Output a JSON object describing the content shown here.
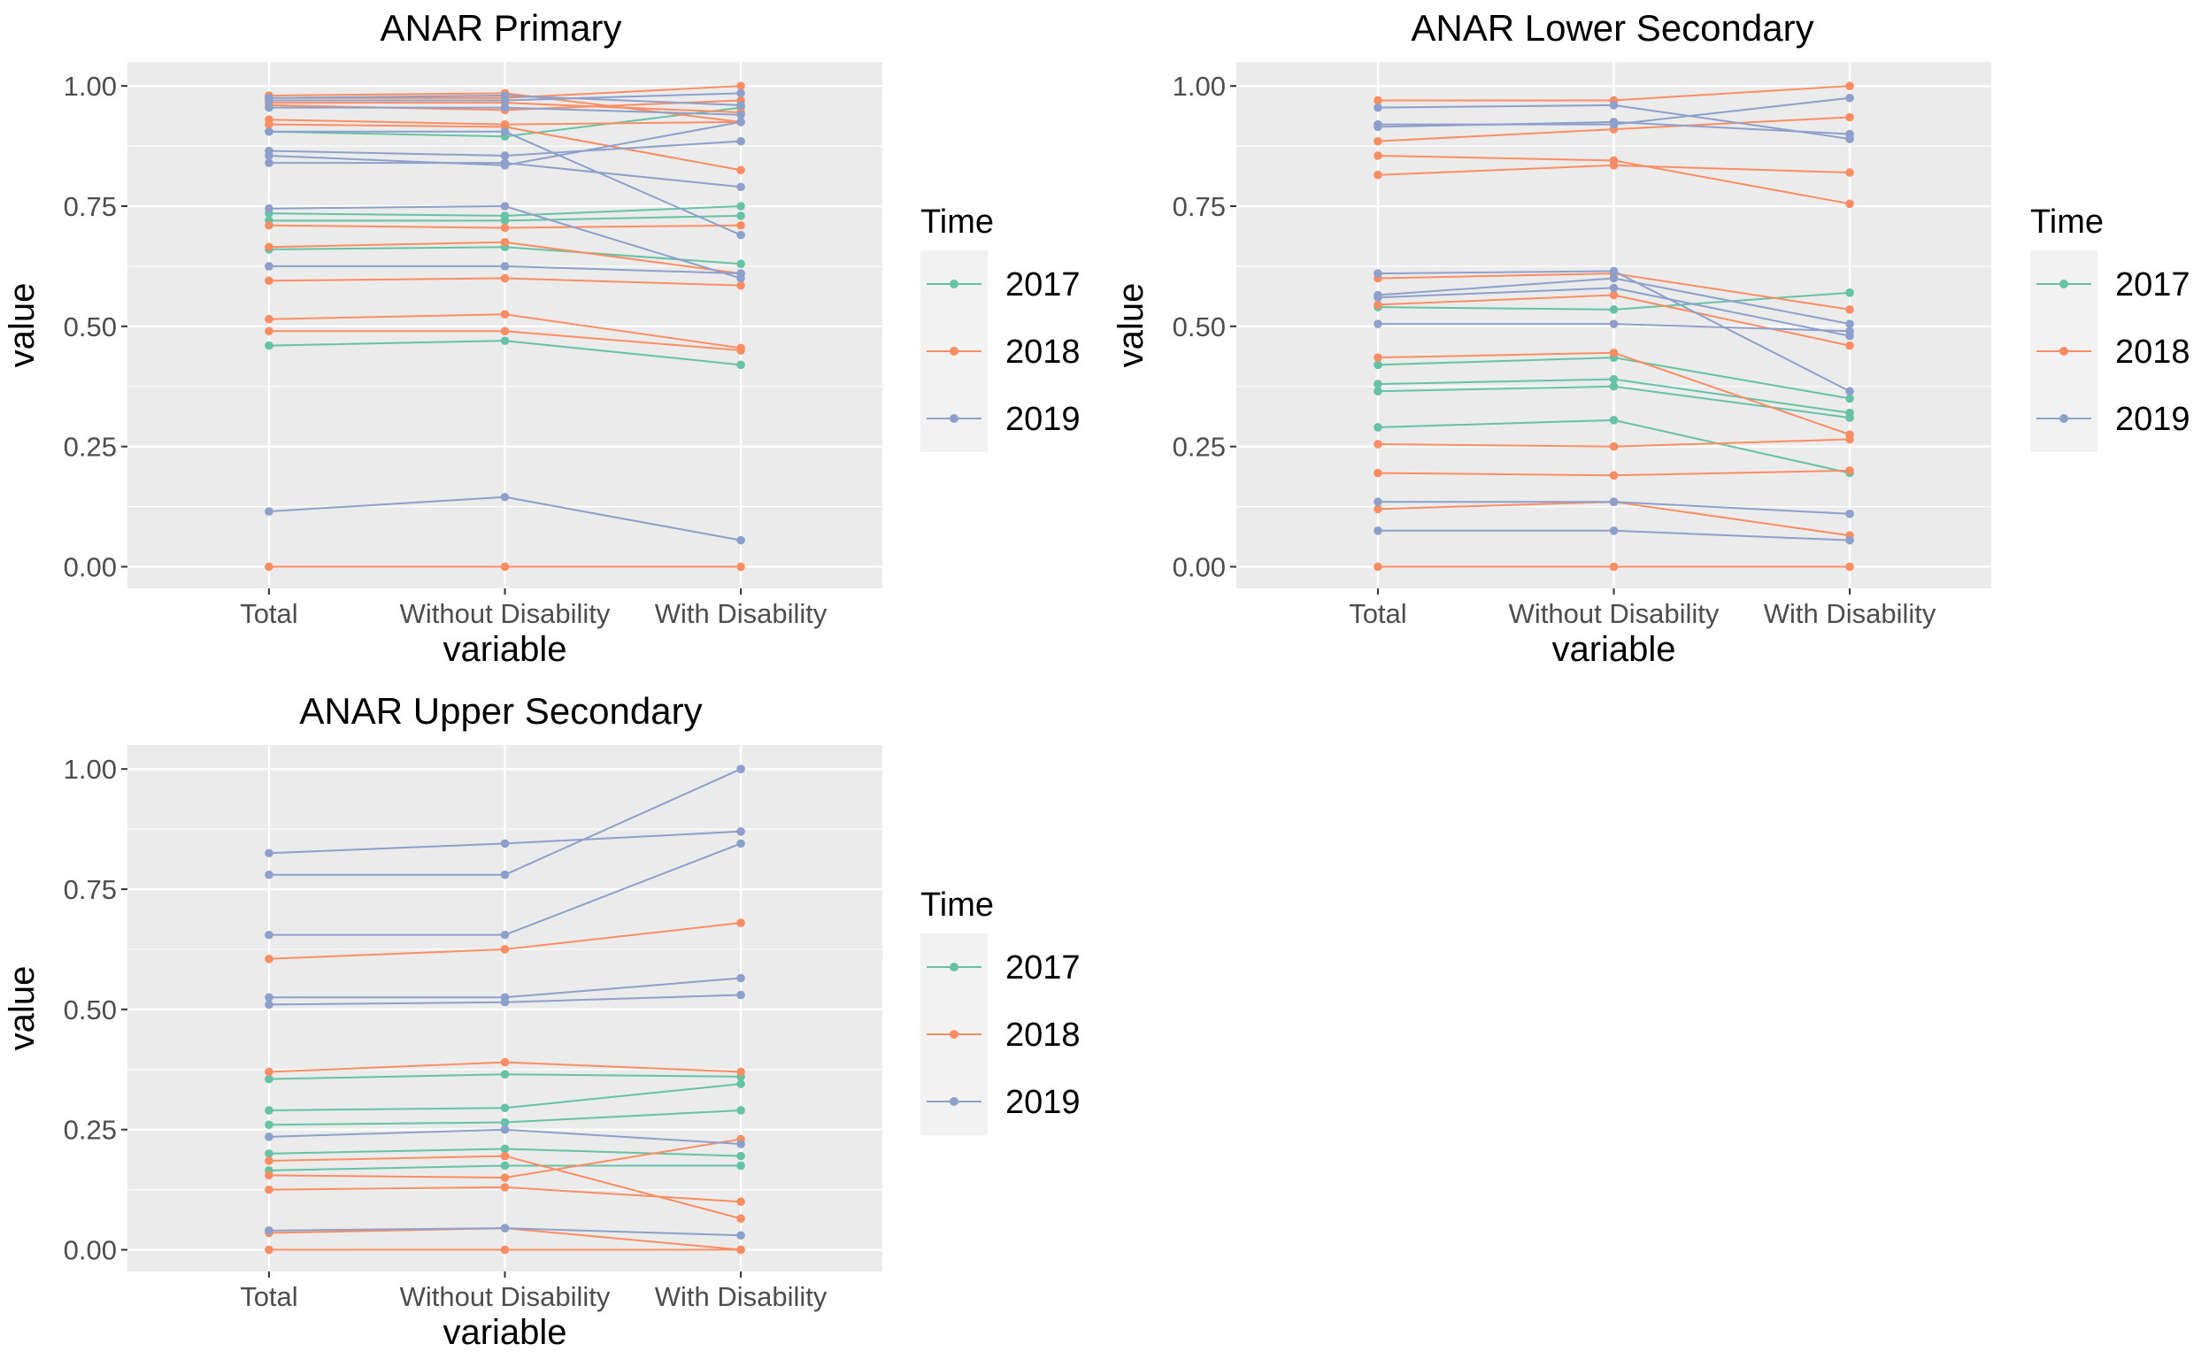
{
  "colors": {
    "panel_bg": "#ebebeb",
    "grid_major": "#ffffff",
    "legend_key_bg": "#f2f2f2",
    "2017": "#66c2a5",
    "2018": "#fc8d62",
    "2019": "#8da0cb"
  },
  "chart_data": [
    {
      "type": "line",
      "title": "ANAR Primary",
      "xlabel": "variable",
      "ylabel": "value",
      "categories": [
        "Total",
        "Without Disability",
        "With Disability"
      ],
      "yticks": [
        "0.00",
        "0.25",
        "0.50",
        "0.75",
        "1.00"
      ],
      "ylim": [
        -0.045,
        1.05
      ],
      "grid": true,
      "legend": {
        "title": "Time",
        "placement": "right",
        "entries": [
          "2017",
          "2018",
          "2019"
        ]
      },
      "series": [
        {
          "time": "2017",
          "values": [
            0.905,
            0.895,
            0.955
          ]
        },
        {
          "time": "2017",
          "values": [
            0.735,
            0.73,
            0.75
          ]
        },
        {
          "time": "2017",
          "values": [
            0.72,
            0.72,
            0.73
          ]
        },
        {
          "time": "2017",
          "values": [
            0.66,
            0.665,
            0.63
          ]
        },
        {
          "time": "2017",
          "values": [
            0.46,
            0.47,
            0.42
          ]
        },
        {
          "time": "2018",
          "values": [
            0.98,
            0.985,
            0.925
          ]
        },
        {
          "time": "2018",
          "values": [
            0.975,
            0.975,
            1.0
          ]
        },
        {
          "time": "2018",
          "values": [
            0.965,
            0.965,
            0.945
          ]
        },
        {
          "time": "2018",
          "values": [
            0.96,
            0.95,
            0.97
          ]
        },
        {
          "time": "2018",
          "values": [
            0.93,
            0.92,
            0.925
          ]
        },
        {
          "time": "2018",
          "values": [
            0.92,
            0.915,
            0.825
          ]
        },
        {
          "time": "2018",
          "values": [
            0.71,
            0.705,
            0.71
          ]
        },
        {
          "time": "2018",
          "values": [
            0.665,
            0.675,
            0.61
          ]
        },
        {
          "time": "2018",
          "values": [
            0.595,
            0.6,
            0.585
          ]
        },
        {
          "time": "2018",
          "values": [
            0.515,
            0.525,
            0.455
          ]
        },
        {
          "time": "2018",
          "values": [
            0.49,
            0.49,
            0.45
          ]
        },
        {
          "time": "2018",
          "values": [
            0.0,
            0.0,
            0.0
          ]
        },
        {
          "time": "2019",
          "values": [
            0.975,
            0.98,
            0.96
          ]
        },
        {
          "time": "2019",
          "values": [
            0.97,
            0.97,
            0.985
          ]
        },
        {
          "time": "2019",
          "values": [
            0.955,
            0.955,
            0.94
          ]
        },
        {
          "time": "2019",
          "values": [
            0.905,
            0.905,
            0.69
          ]
        },
        {
          "time": "2019",
          "values": [
            0.865,
            0.855,
            0.885
          ]
        },
        {
          "time": "2019",
          "values": [
            0.855,
            0.835,
            0.925
          ]
        },
        {
          "time": "2019",
          "values": [
            0.84,
            0.84,
            0.79
          ]
        },
        {
          "time": "2019",
          "values": [
            0.745,
            0.75,
            0.6
          ]
        },
        {
          "time": "2019",
          "values": [
            0.625,
            0.625,
            0.61
          ]
        },
        {
          "time": "2019",
          "values": [
            0.115,
            0.145,
            0.055
          ]
        }
      ]
    },
    {
      "type": "line",
      "title": "ANAR Lower Secondary",
      "xlabel": "variable",
      "ylabel": "value",
      "categories": [
        "Total",
        "Without Disability",
        "With Disability"
      ],
      "yticks": [
        "0.00",
        "0.25",
        "0.50",
        "0.75",
        "1.00"
      ],
      "ylim": [
        -0.045,
        1.05
      ],
      "grid": true,
      "legend": {
        "title": "Time",
        "placement": "right",
        "entries": [
          "2017",
          "2018",
          "2019"
        ]
      },
      "series": [
        {
          "time": "2017",
          "values": [
            0.54,
            0.535,
            0.57
          ]
        },
        {
          "time": "2017",
          "values": [
            0.42,
            0.435,
            0.35
          ]
        },
        {
          "time": "2017",
          "values": [
            0.38,
            0.39,
            0.32
          ]
        },
        {
          "time": "2017",
          "values": [
            0.365,
            0.375,
            0.31
          ]
        },
        {
          "time": "2017",
          "values": [
            0.29,
            0.305,
            0.195
          ]
        },
        {
          "time": "2018",
          "values": [
            0.97,
            0.97,
            1.0
          ]
        },
        {
          "time": "2018",
          "values": [
            0.885,
            0.91,
            0.935
          ]
        },
        {
          "time": "2018",
          "values": [
            0.855,
            0.845,
            0.755
          ]
        },
        {
          "time": "2018",
          "values": [
            0.815,
            0.835,
            0.82
          ]
        },
        {
          "time": "2018",
          "values": [
            0.6,
            0.61,
            0.535
          ]
        },
        {
          "time": "2018",
          "values": [
            0.545,
            0.565,
            0.46
          ]
        },
        {
          "time": "2018",
          "values": [
            0.435,
            0.445,
            0.275
          ]
        },
        {
          "time": "2018",
          "values": [
            0.255,
            0.25,
            0.265
          ]
        },
        {
          "time": "2018",
          "values": [
            0.195,
            0.19,
            0.2
          ]
        },
        {
          "time": "2018",
          "values": [
            0.12,
            0.135,
            0.065
          ]
        },
        {
          "time": "2018",
          "values": [
            0.0,
            0.0,
            0.0
          ]
        },
        {
          "time": "2019",
          "values": [
            0.955,
            0.96,
            0.89
          ]
        },
        {
          "time": "2019",
          "values": [
            0.92,
            0.92,
            0.975
          ]
        },
        {
          "time": "2019",
          "values": [
            0.915,
            0.925,
            0.9
          ]
        },
        {
          "time": "2019",
          "values": [
            0.61,
            0.615,
            0.365
          ]
        },
        {
          "time": "2019",
          "values": [
            0.565,
            0.6,
            0.505
          ]
        },
        {
          "time": "2019",
          "values": [
            0.56,
            0.58,
            0.48
          ]
        },
        {
          "time": "2019",
          "values": [
            0.505,
            0.505,
            0.49
          ]
        },
        {
          "time": "2019",
          "values": [
            0.135,
            0.135,
            0.11
          ]
        },
        {
          "time": "2019",
          "values": [
            0.075,
            0.075,
            0.055
          ]
        }
      ]
    },
    {
      "type": "line",
      "title": "ANAR Upper Secondary",
      "xlabel": "variable",
      "ylabel": "value",
      "categories": [
        "Total",
        "Without Disability",
        "With Disability"
      ],
      "yticks": [
        "0.00",
        "0.25",
        "0.50",
        "0.75",
        "1.00"
      ],
      "ylim": [
        -0.045,
        1.05
      ],
      "grid": true,
      "legend": {
        "title": "Time",
        "placement": "right",
        "entries": [
          "2017",
          "2018",
          "2019"
        ]
      },
      "series": [
        {
          "time": "2017",
          "values": [
            0.355,
            0.365,
            0.36
          ]
        },
        {
          "time": "2017",
          "values": [
            0.29,
            0.295,
            0.345
          ]
        },
        {
          "time": "2017",
          "values": [
            0.26,
            0.265,
            0.29
          ]
        },
        {
          "time": "2017",
          "values": [
            0.2,
            0.21,
            0.195
          ]
        },
        {
          "time": "2017",
          "values": [
            0.165,
            0.175,
            0.175
          ]
        },
        {
          "time": "2018",
          "values": [
            0.605,
            0.625,
            0.68
          ]
        },
        {
          "time": "2018",
          "values": [
            0.37,
            0.39,
            0.37
          ]
        },
        {
          "time": "2018",
          "values": [
            0.185,
            0.195,
            0.065
          ]
        },
        {
          "time": "2018",
          "values": [
            0.155,
            0.15,
            0.23
          ]
        },
        {
          "time": "2018",
          "values": [
            0.125,
            0.13,
            0.1
          ]
        },
        {
          "time": "2018",
          "values": [
            0.035,
            0.045,
            0.0
          ]
        },
        {
          "time": "2018",
          "values": [
            0.0,
            0.0,
            0.0
          ]
        },
        {
          "time": "2019",
          "values": [
            0.825,
            0.845,
            0.87
          ]
        },
        {
          "time": "2019",
          "values": [
            0.78,
            0.78,
            1.0
          ]
        },
        {
          "time": "2019",
          "values": [
            0.655,
            0.655,
            0.845
          ]
        },
        {
          "time": "2019",
          "values": [
            0.525,
            0.525,
            0.565
          ]
        },
        {
          "time": "2019",
          "values": [
            0.51,
            0.515,
            0.53
          ]
        },
        {
          "time": "2019",
          "values": [
            0.235,
            0.25,
            0.22
          ]
        },
        {
          "time": "2019",
          "values": [
            0.04,
            0.045,
            0.03
          ]
        }
      ]
    }
  ]
}
